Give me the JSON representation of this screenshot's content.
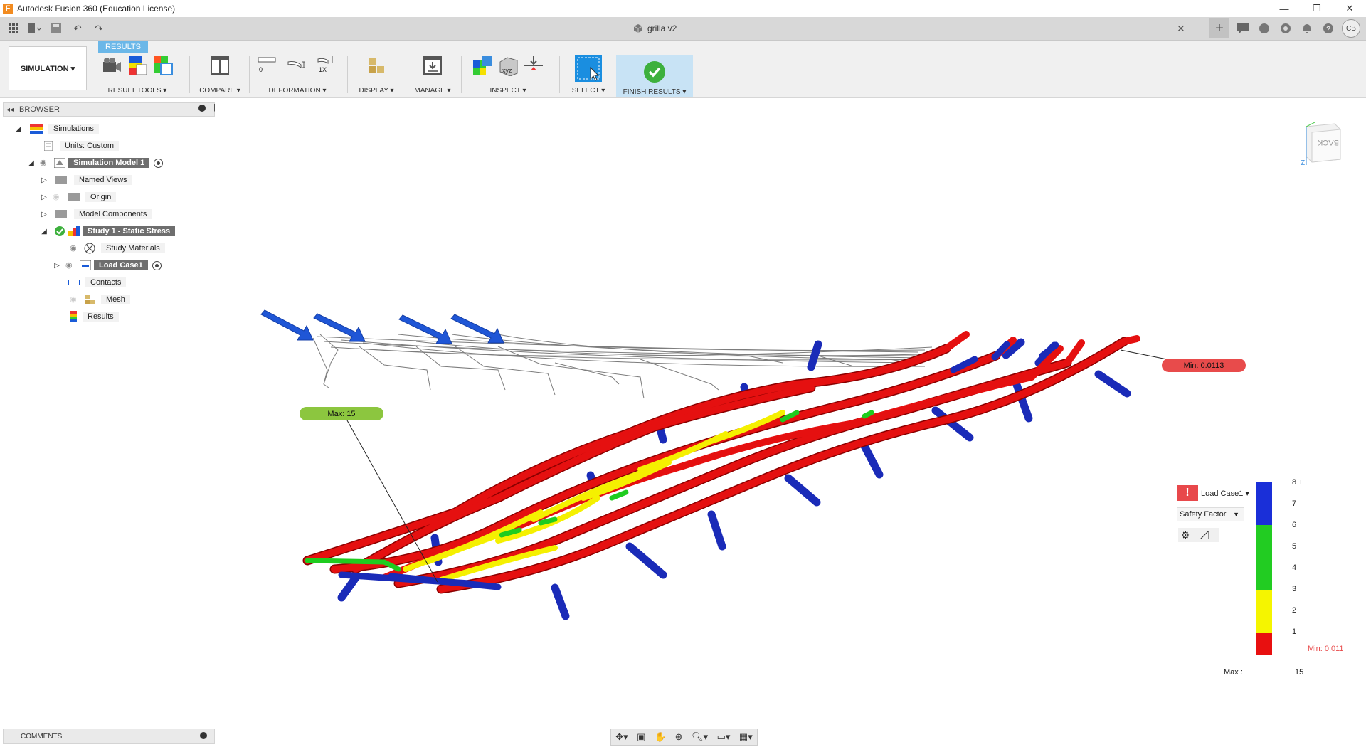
{
  "window": {
    "title": "Autodesk Fusion 360 (Education License)",
    "app_icon_letter": "F",
    "controls": [
      "—",
      "❐",
      "✕"
    ]
  },
  "document": {
    "tab_name": "grilla v2",
    "close": "✕"
  },
  "quick_access": {
    "user_initials": "CB"
  },
  "workspace": {
    "label": "SIMULATION ▾"
  },
  "ribbon": {
    "active_tab": "RESULTS",
    "groups": [
      {
        "label": "RESULT TOOLS ▾"
      },
      {
        "label": "COMPARE ▾"
      },
      {
        "label": "DEFORMATION ▾",
        "values": [
          "0",
          "1X"
        ]
      },
      {
        "label": "DISPLAY ▾"
      },
      {
        "label": "MANAGE ▾"
      },
      {
        "label": "INSPECT ▾",
        "xyz_label": "xyz"
      },
      {
        "label": "SELECT ▾"
      },
      {
        "label": "FINISH RESULTS ▾"
      }
    ]
  },
  "browser": {
    "title": "BROWSER",
    "items": [
      {
        "label": "Simulations"
      },
      {
        "label": "Units: Custom"
      },
      {
        "label": "Simulation Model 1"
      },
      {
        "label": "Named Views"
      },
      {
        "label": "Origin"
      },
      {
        "label": "Model Components"
      },
      {
        "label": "Study 1 - Static Stress"
      },
      {
        "label": "Study Materials"
      },
      {
        "label": "Load Case1"
      },
      {
        "label": "Contacts"
      },
      {
        "label": "Mesh"
      },
      {
        "label": "Results"
      }
    ]
  },
  "comments": {
    "label": "COMMENTS"
  },
  "viewport": {
    "max_probe": "Max: 15",
    "min_probe": "Min: 0.0113",
    "viewcube_face": "BACK",
    "viewcube_axis": "Z"
  },
  "legend": {
    "load_case": "Load Case1 ▾",
    "result_type": "Safety Factor",
    "ticks": [
      "8 +",
      "7",
      "6",
      "5",
      "4",
      "3",
      "2",
      "1"
    ],
    "min_label": "Min: 0.011",
    "max_label": "Max :",
    "max_value": "15",
    "colors": {
      "blue": "#1a2fd8",
      "green": "#22cc22",
      "yellow": "#f5f500",
      "red": "#e81010"
    }
  },
  "colors": {
    "accent_tab": "#6bb7e8",
    "min_badge": "#e84b4b",
    "max_badge": "#8cc63f",
    "finish_bg": "#c8e3f5"
  }
}
